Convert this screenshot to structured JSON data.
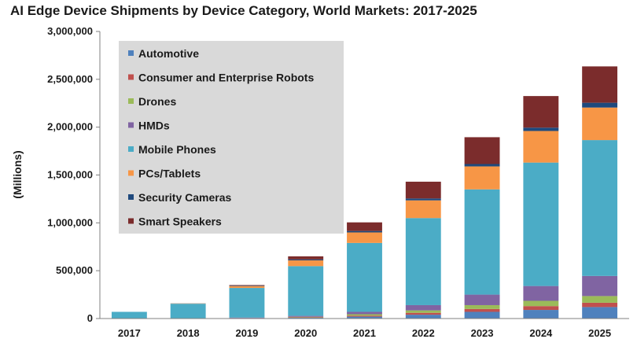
{
  "chart_data": {
    "type": "bar",
    "stacked": true,
    "title": "AI Edge Device Shipments by Device Category, World Markets: 2017-2025",
    "ylabel": "(Millions)",
    "xlabel": "",
    "ylim": [
      0,
      3000000
    ],
    "yticks": [
      "0",
      "500,000",
      "1,000,000",
      "1,500,000",
      "2,000,000",
      "2,500,000",
      "3,000,000"
    ],
    "categories": [
      "2017",
      "2018",
      "2019",
      "2020",
      "2021",
      "2022",
      "2023",
      "2024",
      "2025"
    ],
    "grid": false,
    "legend_position": "top-left",
    "series": [
      {
        "name": "Automotive",
        "color": "#4f81bd",
        "values": [
          0,
          0,
          2000,
          8000,
          20000,
          40000,
          70000,
          90000,
          120000
        ]
      },
      {
        "name": "Consumer and Enterprise Robots",
        "color": "#c0504d",
        "values": [
          0,
          0,
          2000,
          5000,
          10000,
          20000,
          30000,
          40000,
          45000
        ]
      },
      {
        "name": "Drones",
        "color": "#9bbb59",
        "values": [
          0,
          0,
          1000,
          5000,
          15000,
          25000,
          40000,
          55000,
          70000
        ]
      },
      {
        "name": "HMDs",
        "color": "#8064a2",
        "values": [
          0,
          0,
          5000,
          10000,
          25000,
          55000,
          110000,
          155000,
          210000
        ]
      },
      {
        "name": "Mobile Phones",
        "color": "#4bacc6",
        "values": [
          70000,
          155000,
          310000,
          520000,
          720000,
          910000,
          1100000,
          1290000,
          1420000
        ]
      },
      {
        "name": "PCs/Tablets",
        "color": "#f79646",
        "values": [
          0,
          3000,
          20000,
          60000,
          110000,
          185000,
          240000,
          330000,
          340000
        ]
      },
      {
        "name": "Security Cameras",
        "color": "#1f497d",
        "values": [
          0,
          1000,
          5000,
          10000,
          15000,
          20000,
          25000,
          35000,
          50000
        ]
      },
      {
        "name": "Smart Speakers",
        "color": "#7b2c2c",
        "values": [
          0,
          0,
          5000,
          32000,
          90000,
          175000,
          280000,
          330000,
          380000
        ]
      }
    ]
  }
}
